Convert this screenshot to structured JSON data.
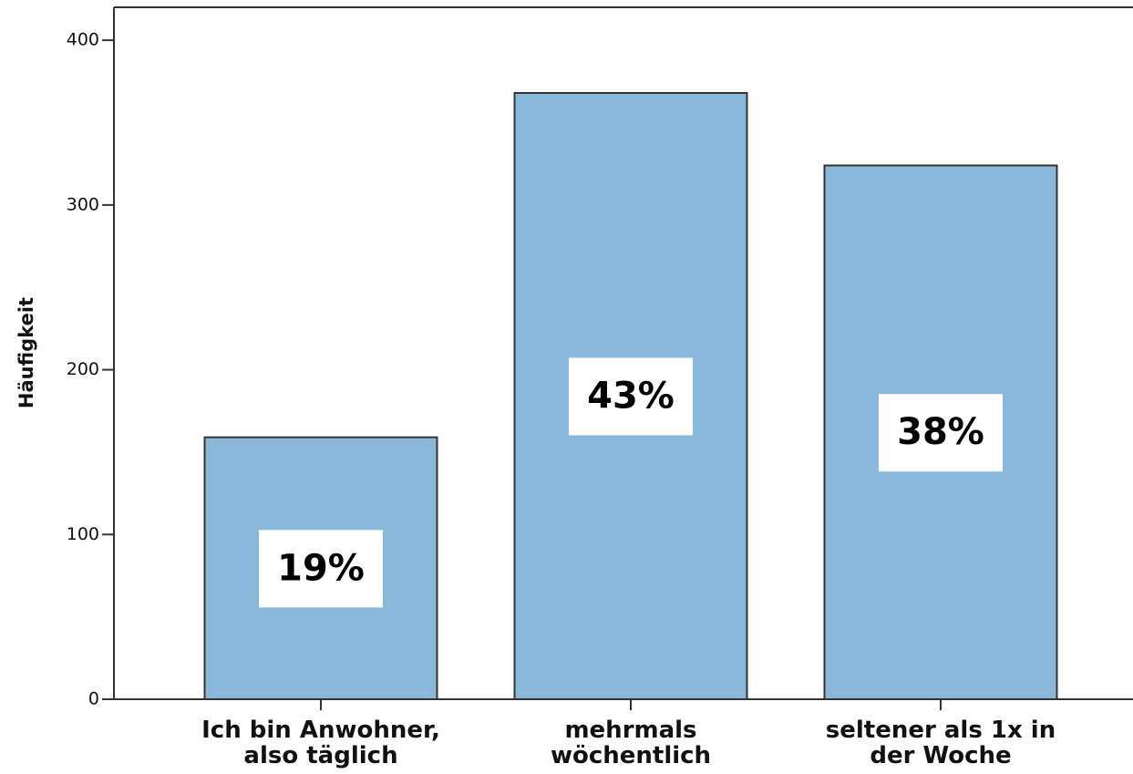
{
  "chart_data": {
    "type": "bar",
    "y_label": "Häufigkeit",
    "categories": [
      "Ich bin Anwohner,\nalso täglich",
      "mehrmals\nwöchentlich",
      "seltener als 1x in\nder Woche"
    ],
    "values": [
      159,
      368,
      324
    ],
    "percent_labels": [
      "19%",
      "43%",
      "38%"
    ],
    "color": "#8ab8da",
    "ylim": [
      0,
      420
    ],
    "yticks": [
      0,
      100,
      200,
      300,
      400
    ],
    "grid": false
  }
}
